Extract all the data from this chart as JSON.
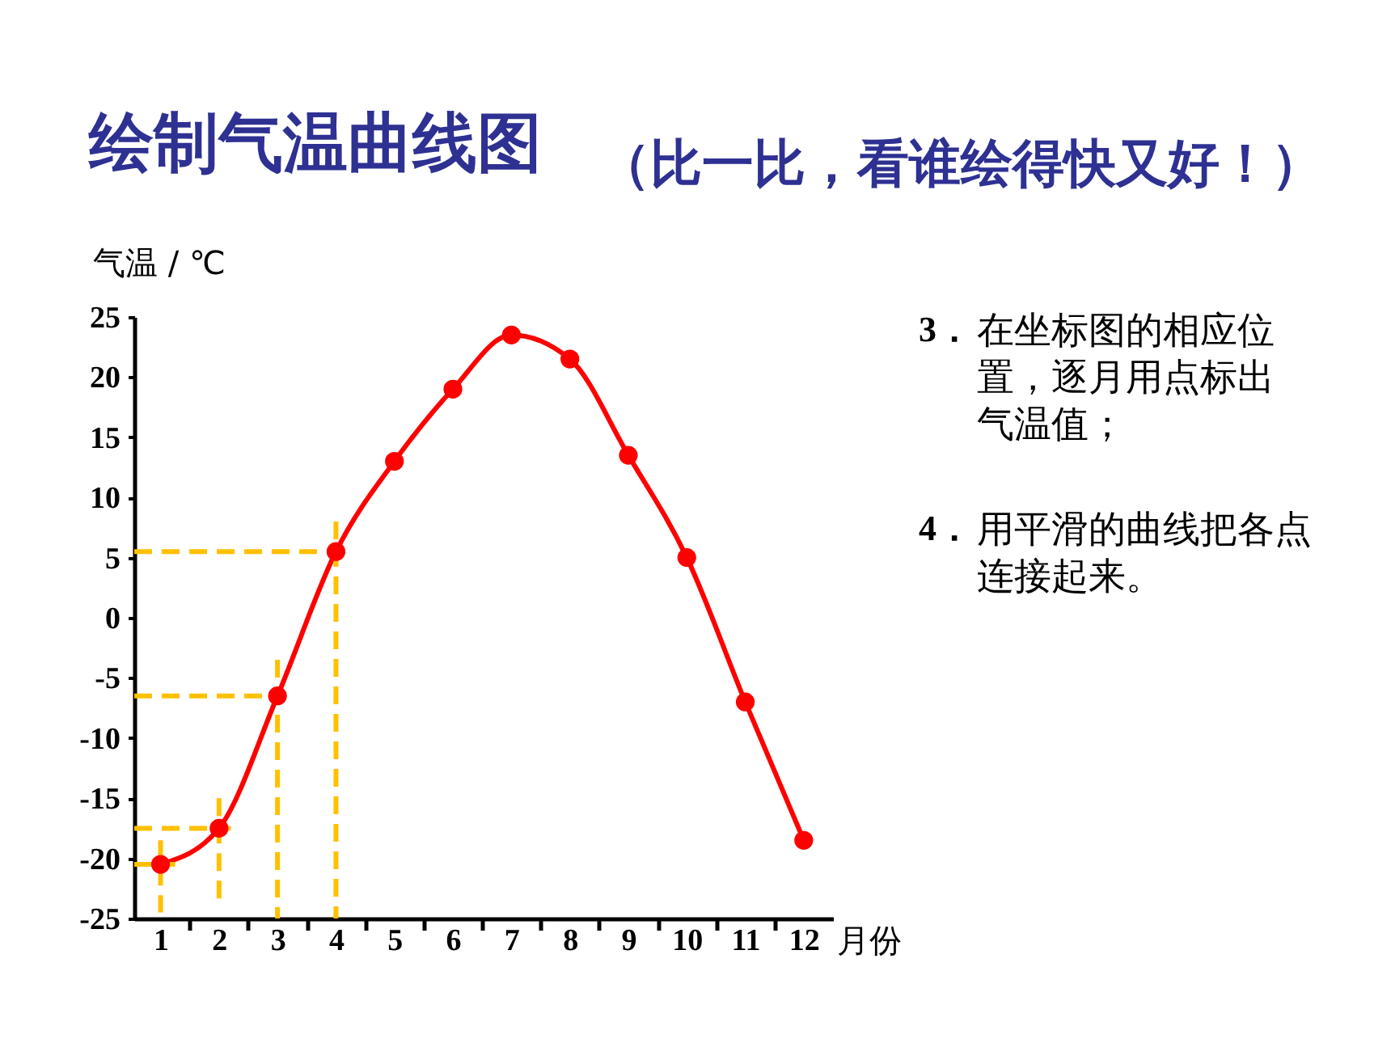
{
  "chart_data": {
    "type": "line",
    "title": "绘制气温曲线图",
    "subtitle": "（比一比，看谁绘得快又好！）",
    "ylabel": "气温 / ℃",
    "xlabel": "月份",
    "annotations": [
      "3．在坐标图的相应位置，逐月用点标出气温值；",
      "4．用平滑的曲线把各点连接起来。"
    ],
    "x": [
      1,
      2,
      3,
      4,
      5,
      6,
      7,
      8,
      9,
      10,
      11,
      12
    ],
    "series": [
      {
        "color": "#ff0000",
        "marker": "circle",
        "line_style": "solid",
        "values": [
          -20.5,
          -17.5,
          -6.5,
          5.5,
          13,
          19,
          23.5,
          21.5,
          13.5,
          5,
          -7,
          -18.5
        ]
      },
      {
        "color": "#ffc000",
        "marker": "none",
        "line_style": "dashed",
        "x": [
          0.55,
          1.25,
          null,
          1,
          1
        ],
        "values": [
          -20.5,
          -20.5,
          null,
          -18.5,
          -24.5
        ]
      },
      {
        "color": "#ffc000",
        "marker": "none",
        "line_style": "dashed",
        "x": [
          0.55,
          2.2,
          null,
          2,
          2
        ],
        "values": [
          -17.5,
          -17.5,
          null,
          -15,
          -23.5
        ]
      },
      {
        "color": "#ffc000",
        "marker": "none",
        "line_style": "dashed",
        "x": [
          0.55,
          3.1,
          null,
          3,
          3
        ],
        "values": [
          -6.5,
          -6.5,
          null,
          -3.5,
          -25
        ]
      },
      {
        "color": "#ffc000",
        "marker": "none",
        "line_style": "dashed",
        "x": [
          0.55,
          4.3,
          null,
          4,
          4
        ],
        "values": [
          5.5,
          5.5,
          null,
          8,
          -25
        ]
      }
    ],
    "xlim": [
      0.55,
      12.5
    ],
    "xticks": [
      {
        "value": 1,
        "label": "1"
      },
      {
        "value": 1.5,
        "label": null
      },
      {
        "value": 2,
        "label": "2"
      },
      {
        "value": 2.5,
        "label": null
      },
      {
        "value": 3,
        "label": "3"
      },
      {
        "value": 3.5,
        "label": null
      },
      {
        "value": 4,
        "label": "4"
      },
      {
        "value": 4.5,
        "label": null
      },
      {
        "value": 5,
        "label": "5"
      },
      {
        "value": 5.5,
        "label": null
      },
      {
        "value": 6,
        "label": "6"
      },
      {
        "value": 6.5,
        "label": null
      },
      {
        "value": 7,
        "label": "7"
      },
      {
        "value": 7.5,
        "label": null
      },
      {
        "value": 8,
        "label": "8"
      },
      {
        "value": 8.5,
        "label": null
      },
      {
        "value": 9,
        "label": "9"
      },
      {
        "value": 9.5,
        "label": null
      },
      {
        "value": 10,
        "label": "10"
      },
      {
        "value": 10.5,
        "label": null
      },
      {
        "value": 11,
        "label": "11"
      },
      {
        "value": 11.5,
        "label": null
      },
      {
        "value": 12,
        "label": "12"
      }
    ],
    "ylim": [
      -25,
      25
    ],
    "yticks": [
      -25,
      -20,
      -15,
      -10,
      -5,
      0,
      5,
      10,
      15,
      20,
      25
    ],
    "grid": false,
    "legend": false
  }
}
